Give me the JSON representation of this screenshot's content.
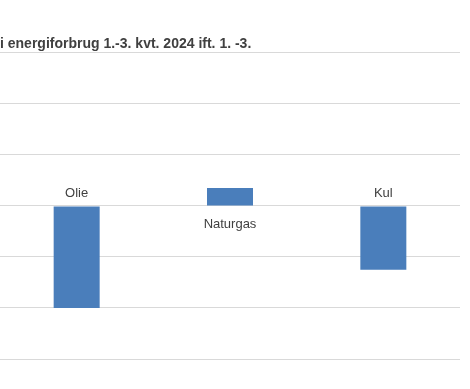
{
  "chart_data": {
    "type": "bar",
    "title": "i energiforbrug 1.-3. kvt. 2024 ift. 1. -3.",
    "categories": [
      "Olie",
      "Naturgas",
      "Kul"
    ],
    "values": [
      -2,
      0.35,
      -1.25
    ],
    "color": "#4a7ebb",
    "ylim": [
      -3,
      3
    ],
    "yticks": [
      -3,
      -2,
      -1,
      0,
      1,
      2,
      3
    ],
    "grid": true,
    "tick_labels": false
  }
}
